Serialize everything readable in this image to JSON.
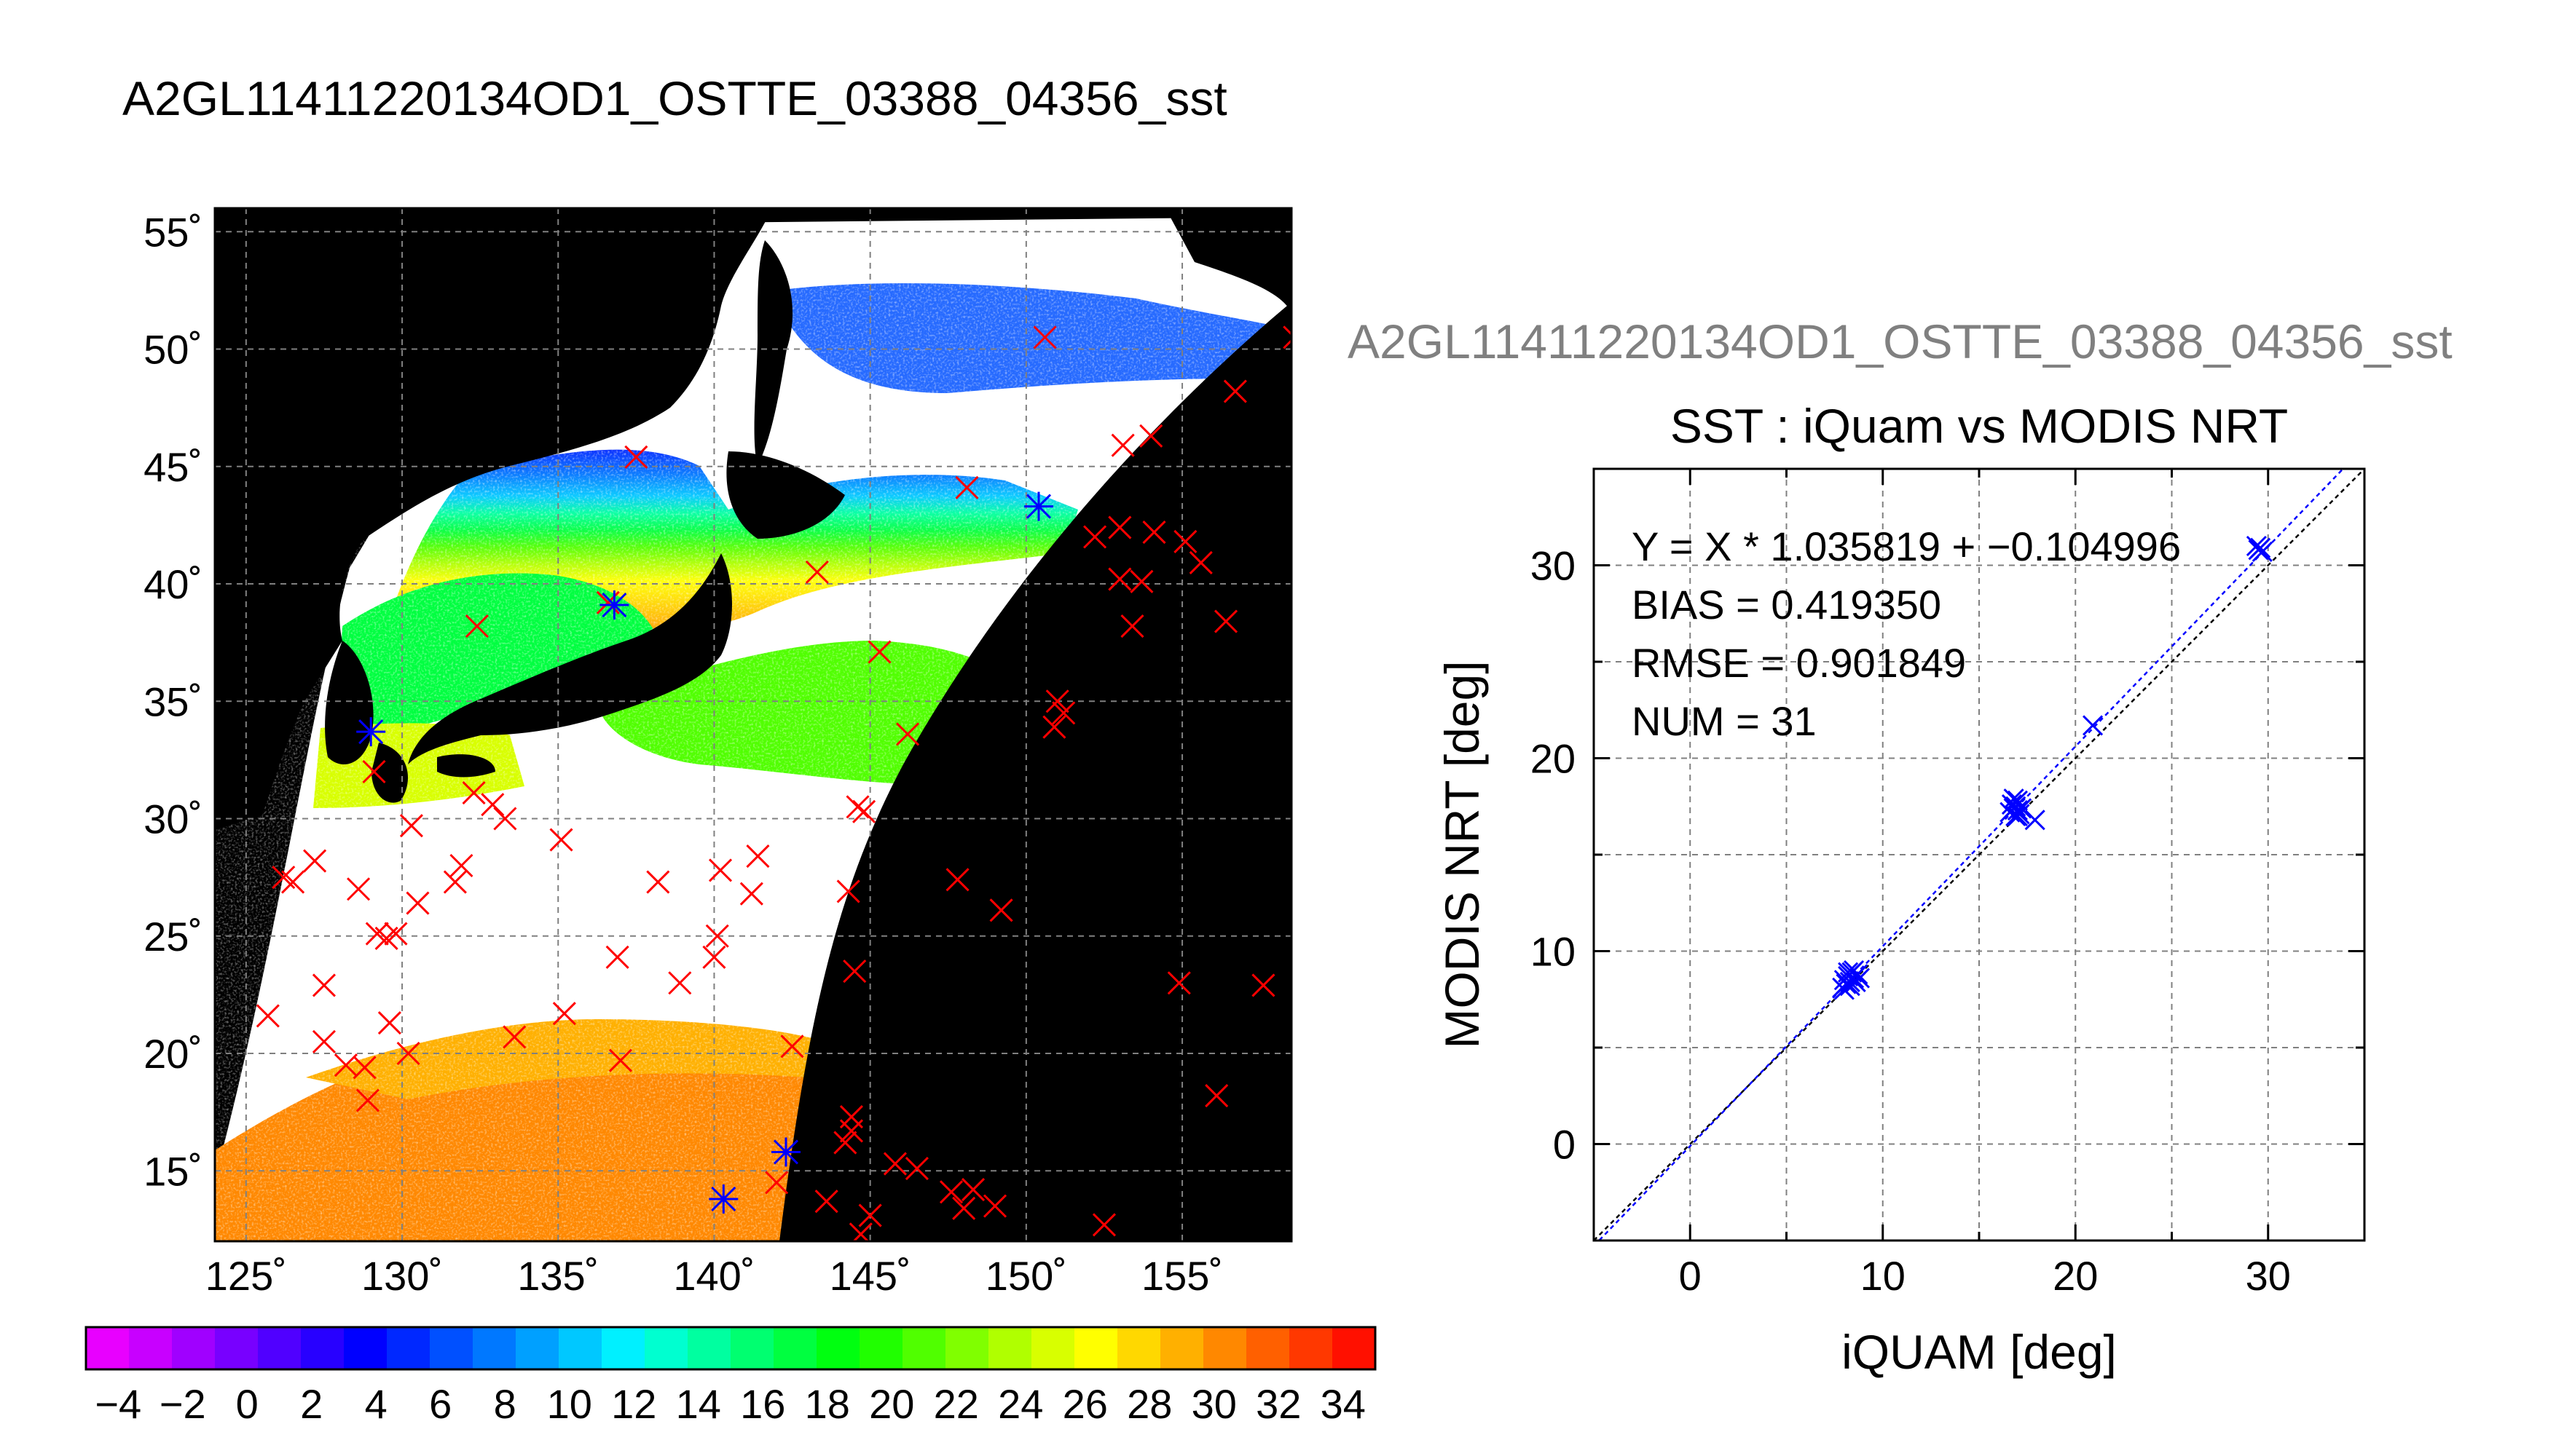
{
  "page": {
    "main_title": "A2GL11411220134OD1_OSTTE_03388_04356_sst",
    "scatter_title_gray": "A2GL11411220134OD1_OSTTE_03388_04356_sst"
  },
  "colors": {
    "background": "#ffffff",
    "land": "#000000",
    "cloud": "#ffffff",
    "grid": "#808080",
    "marker_in": "#0000ff",
    "marker_out": "#ff0000",
    "fit_line": "#0000ff",
    "gray_title": "#808080"
  },
  "chart_data": [
    {
      "type": "map",
      "name": "sst-map",
      "lon_range": [
        124,
        158.5
      ],
      "lat_range": [
        12,
        56
      ],
      "lon_ticks": [
        125,
        130,
        135,
        140,
        145,
        150,
        155
      ],
      "lat_ticks": [
        15,
        20,
        25,
        30,
        35,
        40,
        45,
        50,
        55
      ],
      "lon_tick_labels": [
        "125˚",
        "130˚",
        "135˚",
        "140˚",
        "145˚",
        "150˚",
        "155˚"
      ],
      "lat_tick_labels": [
        "15˚",
        "20˚",
        "25˚",
        "30˚",
        "35˚",
        "40˚",
        "45˚",
        "50˚",
        "55˚"
      ],
      "grid": true,
      "colorbar": {
        "min": -5,
        "max": 35,
        "tick_labels": [
          "−4",
          "−2",
          "0",
          "2",
          "4",
          "6",
          "8",
          "10",
          "12",
          "14",
          "16",
          "18",
          "20",
          "22",
          "24",
          "26",
          "28",
          "30",
          "32",
          "34"
        ],
        "tick_values": [
          -4,
          -2,
          0,
          2,
          4,
          6,
          8,
          10,
          12,
          14,
          16,
          18,
          20,
          22,
          24,
          26,
          28,
          30,
          32,
          34
        ],
        "colors": [
          "#e800ff",
          "#c800ff",
          "#a000ff",
          "#7800ff",
          "#5000ff",
          "#2800ff",
          "#0000ff",
          "#0028ff",
          "#0050ff",
          "#0078ff",
          "#00a0ff",
          "#00c8ff",
          "#00f0ff",
          "#00ffd0",
          "#00ffa0",
          "#00ff70",
          "#00ff40",
          "#00ff10",
          "#20ff00",
          "#50ff00",
          "#80ff00",
          "#b0ff00",
          "#d8ff00",
          "#ffff00",
          "#ffd800",
          "#ffb000",
          "#ff8800",
          "#ff6000",
          "#ff3800",
          "#ff1000"
        ]
      },
      "matched_points_blue": [
        [
          129.0,
          33.7
        ],
        [
          136.8,
          39.1
        ],
        [
          150.4,
          43.3
        ],
        [
          140.3,
          13.8
        ],
        [
          142.3,
          15.8
        ]
      ],
      "unmatched_points_red": [
        [
          126.2,
          27.5
        ],
        [
          126.5,
          27.3
        ],
        [
          127.2,
          28.2
        ],
        [
          125.7,
          21.6
        ],
        [
          127.5,
          22.9
        ],
        [
          127.5,
          20.5
        ],
        [
          128.2,
          19.5
        ],
        [
          128.8,
          19.4
        ],
        [
          128.9,
          18.0
        ],
        [
          128.6,
          27.0
        ],
        [
          129.2,
          25.1
        ],
        [
          129.5,
          24.9
        ],
        [
          129.8,
          25.1
        ],
        [
          129.6,
          21.3
        ],
        [
          130.2,
          20.0
        ],
        [
          130.5,
          26.4
        ],
        [
          129.1,
          32.0
        ],
        [
          130.3,
          29.7
        ],
        [
          131.9,
          28.0
        ],
        [
          132.3,
          31.1
        ],
        [
          132.9,
          30.6
        ],
        [
          133.3,
          30.0
        ],
        [
          131.7,
          27.3
        ],
        [
          133.6,
          20.7
        ],
        [
          135.2,
          21.7
        ],
        [
          135.1,
          29.1
        ],
        [
          136.9,
          24.1
        ],
        [
          137.0,
          19.7
        ],
        [
          138.2,
          27.3
        ],
        [
          138.9,
          23.0
        ],
        [
          140.2,
          27.8
        ],
        [
          140.1,
          25.0
        ],
        [
          140.0,
          24.1
        ],
        [
          141.2,
          26.8
        ],
        [
          141.4,
          28.4
        ],
        [
          144.3,
          26.9
        ],
        [
          144.5,
          23.5
        ],
        [
          142.5,
          20.3
        ],
        [
          144.4,
          17.3
        ],
        [
          144.4,
          16.7
        ],
        [
          144.2,
          16.2
        ],
        [
          145.0,
          13.1
        ],
        [
          144.7,
          12.3
        ],
        [
          145.8,
          15.3
        ],
        [
          146.5,
          15.1
        ],
        [
          143.6,
          13.7
        ],
        [
          142.0,
          14.5
        ],
        [
          144.6,
          30.5
        ],
        [
          144.8,
          30.3
        ],
        [
          145.3,
          37.1
        ],
        [
          146.2,
          33.6
        ],
        [
          147.6,
          14.1
        ],
        [
          148.0,
          13.4
        ],
        [
          148.3,
          14.2
        ],
        [
          149.0,
          13.5
        ],
        [
          147.8,
          27.4
        ],
        [
          149.2,
          26.1
        ],
        [
          150.9,
          33.9
        ],
        [
          151.2,
          34.5
        ],
        [
          151.0,
          35.0
        ],
        [
          152.5,
          12.7
        ],
        [
          153.0,
          40.2
        ],
        [
          153.7,
          40.1
        ],
        [
          153.4,
          38.2
        ],
        [
          153.0,
          42.4
        ],
        [
          154.1,
          42.2
        ],
        [
          152.2,
          42.0
        ],
        [
          153.1,
          45.9
        ],
        [
          154.0,
          46.3
        ],
        [
          155.1,
          41.8
        ],
        [
          155.6,
          40.9
        ],
        [
          156.4,
          38.4
        ],
        [
          156.7,
          48.2
        ],
        [
          158.6,
          50.5
        ],
        [
          154.9,
          23.0
        ],
        [
          157.6,
          22.9
        ],
        [
          156.1,
          18.2
        ],
        [
          150.6,
          50.5
        ],
        [
          148.1,
          44.1
        ],
        [
          143.3,
          40.5
        ],
        [
          137.5,
          45.4
        ],
        [
          132.4,
          38.2
        ],
        [
          136.6,
          39.2
        ]
      ]
    },
    {
      "type": "scatter",
      "name": "sst-scatter",
      "title": "SST : iQuam vs MODIS NRT",
      "xlabel": "iQUAM [deg]",
      "ylabel": "MODIS NRT [deg]",
      "xlim": [
        -5,
        35
      ],
      "ylim": [
        -5,
        35
      ],
      "x_ticks": [
        0,
        10,
        20,
        30
      ],
      "y_ticks": [
        0,
        10,
        20,
        30
      ],
      "grid": true,
      "fit": {
        "slope": 1.035819,
        "intercept": -0.104996
      },
      "stats": [
        "Y = X * 1.035819 + −0.104996",
        "BIAS = 0.419350",
        "RMSE = 0.901849",
        "NUM = 31"
      ],
      "points": [
        {
          "x": 7.9,
          "y": 8.1
        },
        {
          "x": 8.0,
          "y": 8.5
        },
        {
          "x": 8.1,
          "y": 8.3
        },
        {
          "x": 8.2,
          "y": 8.7
        },
        {
          "x": 8.3,
          "y": 8.2
        },
        {
          "x": 8.4,
          "y": 8.9
        },
        {
          "x": 8.5,
          "y": 8.6
        },
        {
          "x": 8.6,
          "y": 8.4
        },
        {
          "x": 8.7,
          "y": 8.8
        },
        {
          "x": 8.8,
          "y": 8.6
        },
        {
          "x": 8.2,
          "y": 8.9
        },
        {
          "x": 8.5,
          "y": 9.0
        },
        {
          "x": 16.6,
          "y": 17.2
        },
        {
          "x": 16.8,
          "y": 17.4
        },
        {
          "x": 17.0,
          "y": 17.3
        },
        {
          "x": 16.9,
          "y": 17.5
        },
        {
          "x": 17.1,
          "y": 17.1
        },
        {
          "x": 16.7,
          "y": 17.6
        },
        {
          "x": 17.0,
          "y": 17.8
        },
        {
          "x": 16.9,
          "y": 17.0
        },
        {
          "x": 17.2,
          "y": 17.4
        },
        {
          "x": 16.8,
          "y": 17.9
        },
        {
          "x": 17.9,
          "y": 16.8
        },
        {
          "x": 20.9,
          "y": 21.7
        },
        {
          "x": 29.5,
          "y": 30.8
        },
        {
          "x": 29.6,
          "y": 30.9
        },
        {
          "x": 29.7,
          "y": 30.7
        },
        {
          "x": 8.0,
          "y": 8.0
        },
        {
          "x": 8.3,
          "y": 8.4
        },
        {
          "x": 17.0,
          "y": 17.0
        },
        {
          "x": 29.4,
          "y": 31.0
        }
      ]
    }
  ]
}
